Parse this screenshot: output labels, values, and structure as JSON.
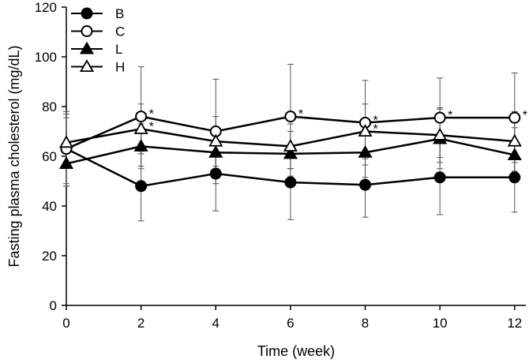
{
  "chart_data": {
    "type": "line",
    "title": "",
    "xlabel": "Time (week)",
    "ylabel": "Fasting plasma cholesterol (mg/dL)",
    "x": [
      0,
      2,
      4,
      6,
      8,
      10,
      12
    ],
    "xlim": [
      0,
      12.3
    ],
    "ylim": [
      0,
      120
    ],
    "xticks": [
      "0",
      "2",
      "4",
      "6",
      "8",
      "10",
      "12"
    ],
    "yticks": [
      "0",
      "20",
      "40",
      "60",
      "80",
      "100",
      "120"
    ],
    "grid": false,
    "legend_position": "top-left",
    "significance_marker": "*",
    "series": [
      {
        "name": "B",
        "marker": "filled-circle",
        "values": [
          63,
          48,
          53,
          49.5,
          48.5,
          51.5,
          51.5
        ],
        "error": [
          15,
          14,
          15,
          15,
          13,
          15,
          14
        ],
        "significant": [
          false,
          false,
          false,
          false,
          false,
          false,
          false
        ]
      },
      {
        "name": "C",
        "marker": "open-circle",
        "values": [
          63,
          76,
          70,
          76,
          73.5,
          75.5,
          75.5
        ],
        "error": [
          14,
          20,
          21,
          21,
          17,
          16,
          18
        ],
        "significant": [
          false,
          true,
          false,
          true,
          true,
          true,
          true
        ]
      },
      {
        "name": "L",
        "marker": "filled-triangle",
        "values": [
          57,
          64,
          61.5,
          61,
          61.5,
          67,
          60.5
        ],
        "error": [
          9,
          9,
          9,
          9,
          10,
          12,
          11
        ],
        "significant": [
          false,
          false,
          false,
          false,
          false,
          false,
          false
        ]
      },
      {
        "name": "H",
        "marker": "open-triangle",
        "values": [
          65.5,
          71,
          66,
          64,
          70,
          68.5,
          66
        ],
        "error": [
          10,
          10,
          10,
          9,
          11,
          11,
          12
        ],
        "significant": [
          false,
          true,
          false,
          false,
          true,
          false,
          false
        ]
      }
    ]
  }
}
